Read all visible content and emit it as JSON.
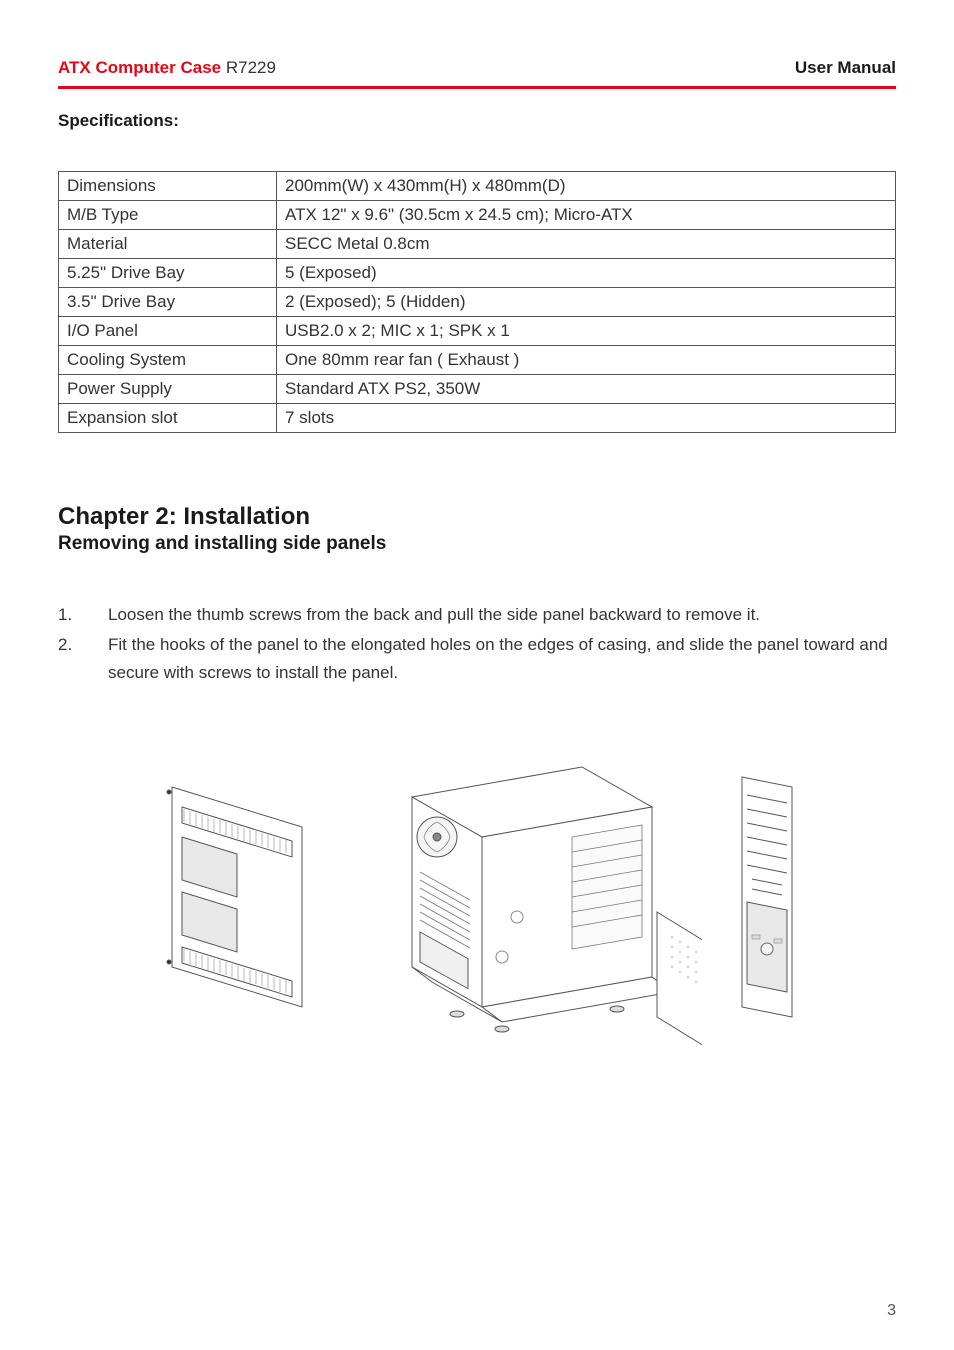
{
  "header": {
    "product_name": "ATX Computer Case",
    "model": "R7229",
    "right_label": "User Manual",
    "product_color": "#e30613",
    "text_color": "#1a1a1a"
  },
  "specifications": {
    "title": "Specifications:",
    "rows": [
      {
        "label": "Dimensions",
        "value": "200mm(W) x 430mm(H) x 480mm(D)"
      },
      {
        "label": "M/B Type",
        "value": "ATX 12\" x 9.6\" (30.5cm x 24.5 cm); Micro-ATX"
      },
      {
        "label": "Material",
        "value": "SECC Metal 0.8cm"
      },
      {
        "label": "5.25\" Drive Bay",
        "value": "5 (Exposed)"
      },
      {
        "label": "3.5\" Drive Bay",
        "value": "2 (Exposed); 5 (Hidden)"
      },
      {
        "label": "I/O Panel",
        "value": "USB2.0 x 2; MIC x 1; SPK x 1"
      },
      {
        "label": "Cooling System",
        "value": "One 80mm rear fan ( Exhaust )"
      },
      {
        "label": "Power Supply",
        "value": "Standard ATX PS2, 350W"
      },
      {
        "label": "Expansion slot",
        "value": "7 slots"
      }
    ]
  },
  "chapter": {
    "title": "Chapter 2: Installation",
    "subtitle": "Removing and installing side panels",
    "steps": [
      {
        "num": "1.",
        "text": "Loosen the thumb screws from the back and pull the side panel backward to remove it."
      },
      {
        "num": "2.",
        "text": "Fit the hooks of the panel to the elongated holes on the edges of casing, and slide the panel  toward and secure with screws to install the panel."
      }
    ]
  },
  "diagram": {
    "stroke_color": "#333333",
    "fill_color": "#ffffff"
  },
  "page_number": "3"
}
